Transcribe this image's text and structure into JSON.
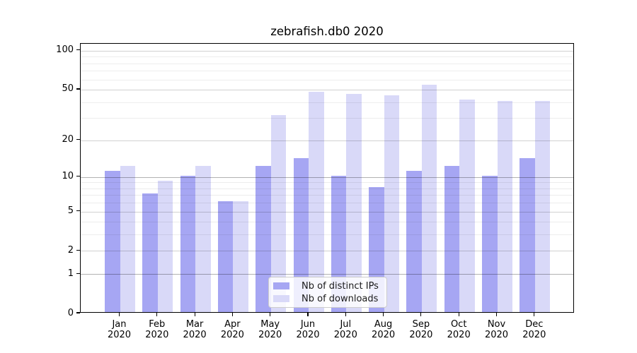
{
  "title": "zebrafish.db0 2020",
  "chart_data": {
    "type": "bar",
    "title": "zebrafish.db0 2020",
    "categories": [
      "Jan",
      "Feb",
      "Mar",
      "Apr",
      "May",
      "Jun",
      "Jul",
      "Aug",
      "Sep",
      "Oct",
      "Nov",
      "Dec"
    ],
    "year_label": "2020",
    "series": [
      {
        "name": "Nb of distinct IPs",
        "color": "#a6a6f3",
        "values": [
          11,
          7,
          10,
          6,
          12,
          14,
          10,
          8,
          11,
          12,
          10,
          14
        ]
      },
      {
        "name": "Nb of downloads",
        "color": "#d9d9f8",
        "values": [
          12,
          9,
          12,
          6,
          31,
          47,
          45,
          44,
          53,
          41,
          40,
          40
        ]
      }
    ],
    "y_scale": "log1p",
    "y_ticks": [
      0,
      1,
      2,
      5,
      10,
      20,
      50,
      100
    ],
    "y_minor_ticks": [
      3,
      4,
      6,
      7,
      8,
      9,
      30,
      40,
      60,
      70,
      80,
      90
    ],
    "y_decade_gridlines": [
      1,
      10
    ],
    "ylim": [
      0,
      110
    ],
    "grid": true,
    "legend_position": "lower center",
    "xlabel": "",
    "ylabel": ""
  },
  "colors": {
    "bar_distinct_ips": "#a6a6f3",
    "bar_downloads": "#d9d9f8",
    "spine": "#000000",
    "gridline_major": "#c9c9c9",
    "gridline_minor": "#ededed",
    "gridline_decade": "#b0b0b0",
    "legend_border": "#cccccc"
  }
}
